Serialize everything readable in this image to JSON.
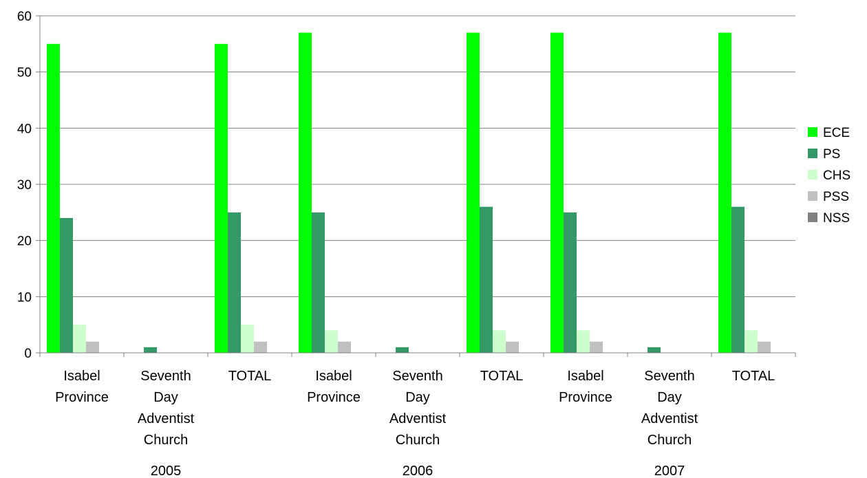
{
  "chart_data": {
    "type": "bar",
    "title": "",
    "xlabel": "",
    "ylabel": "",
    "ylim": [
      0,
      60
    ],
    "y_ticks": [
      0,
      10,
      20,
      30,
      40,
      50,
      60
    ],
    "grid": true,
    "legend_position": "right",
    "groups": [
      {
        "label": "2005",
        "categories": [
          [
            "Isabel",
            "Province"
          ],
          [
            "Seventh",
            "Day",
            "Adventist",
            "Church"
          ],
          [
            "TOTAL"
          ]
        ]
      },
      {
        "label": "2006",
        "categories": [
          [
            "Isabel",
            "Province"
          ],
          [
            "Seventh",
            "Day",
            "Adventist",
            "Church"
          ],
          [
            "TOTAL"
          ]
        ]
      },
      {
        "label": "2007",
        "categories": [
          [
            "Isabel",
            "Province"
          ],
          [
            "Seventh",
            "Day",
            "Adventist",
            "Church"
          ],
          [
            "TOTAL"
          ]
        ]
      }
    ],
    "series": [
      {
        "name": "ECE",
        "color": "#00ff00",
        "values": [
          55,
          0,
          55,
          57,
          0,
          57,
          57,
          0,
          57
        ]
      },
      {
        "name": "PS",
        "color": "#339966",
        "values": [
          24,
          1,
          25,
          25,
          1,
          26,
          25,
          1,
          26
        ]
      },
      {
        "name": "CHS",
        "color": "#ccffcc",
        "values": [
          5,
          0,
          5,
          4,
          0,
          4,
          4,
          0,
          4
        ]
      },
      {
        "name": "PSS",
        "color": "#c0c0c0",
        "values": [
          2,
          0,
          2,
          2,
          0,
          2,
          2,
          0,
          2
        ]
      },
      {
        "name": "NSS",
        "color": "#808080",
        "values": [
          0,
          0,
          0,
          0,
          0,
          0,
          0,
          0,
          0
        ]
      }
    ]
  }
}
